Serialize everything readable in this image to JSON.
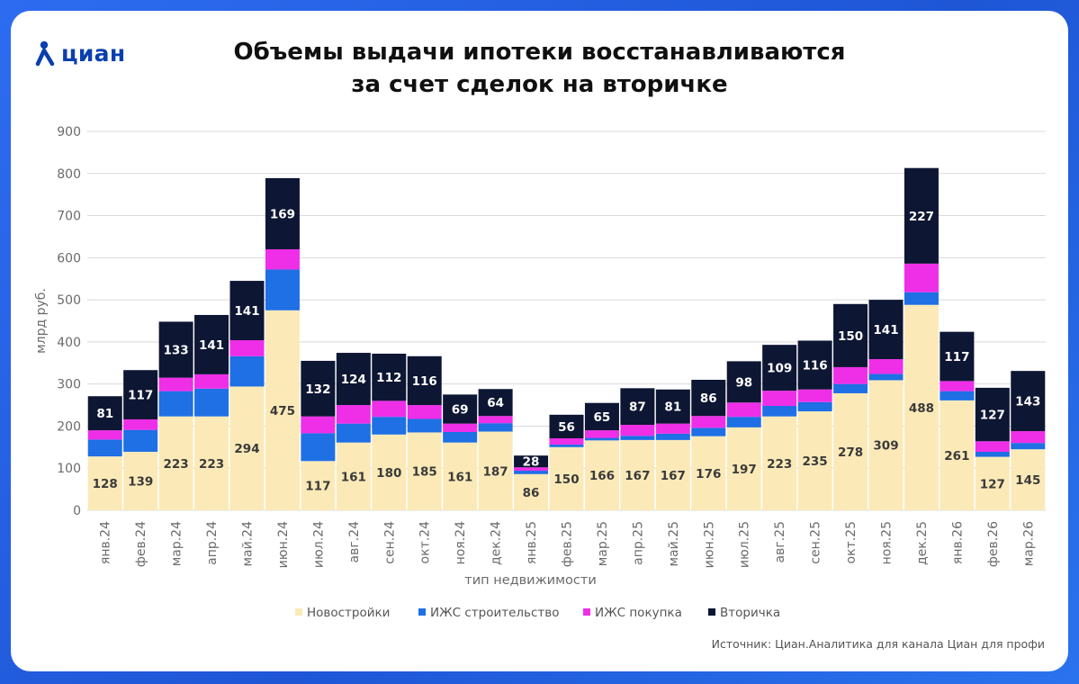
{
  "brand": {
    "logo_text": "циан",
    "icon": "cian-person-icon"
  },
  "title_lines": [
    "Объемы выдачи ипотеки восстанавливаются",
    "за счет сделок на вторичке"
  ],
  "source_text": "Источник: Циан.Аналитика для канала Циан для профи",
  "chart_data": {
    "type": "bar",
    "stacked": true,
    "title": "Объемы выдачи ипотеки восстанавливаются за счет сделок на вторичке",
    "xlabel": "тип недвижимости",
    "ylabel": "млрд руб.",
    "ylim": [
      0,
      900
    ],
    "yticks": [
      0,
      100,
      200,
      300,
      400,
      500,
      600,
      700,
      800,
      900
    ],
    "grid": true,
    "legend_position": "bottom",
    "categories": [
      "янв.24",
      "фев.24",
      "мар.24",
      "апр.24",
      "май.24",
      "июн.24",
      "июл.24",
      "авг.24",
      "сен.24",
      "окт.24",
      "ноя.24",
      "дек.24",
      "янв.25",
      "фев.25",
      "мар.25",
      "апр.25",
      "май.25",
      "июн.25",
      "июл.25",
      "авг.25",
      "сен.25",
      "окт.25",
      "ноя.25",
      "дек.25",
      "янв.26",
      "фев.26",
      "мар.26"
    ],
    "series": [
      {
        "name": "Новостройки",
        "color": "#fbeab8",
        "show_labels": true,
        "values": [
          128,
          139,
          223,
          223,
          294,
          475,
          117,
          161,
          180,
          185,
          161,
          187,
          86,
          150,
          166,
          167,
          167,
          176,
          197,
          223,
          235,
          278,
          309,
          488,
          261,
          127,
          145
        ]
      },
      {
        "name": "ИЖС строительство",
        "color": "#1f6fe5",
        "show_labels": false,
        "values": [
          40,
          52,
          60,
          66,
          72,
          97,
          66,
          45,
          42,
          32,
          25,
          20,
          8,
          6,
          6,
          10,
          15,
          20,
          25,
          25,
          22,
          22,
          15,
          30,
          22,
          12,
          15
        ]
      },
      {
        "name": "ИЖС покупка",
        "color": "#ef2ee8",
        "show_labels": false,
        "values": [
          22,
          25,
          32,
          34,
          38,
          48,
          40,
          44,
          38,
          33,
          20,
          17,
          8,
          15,
          18,
          26,
          24,
          28,
          34,
          36,
          30,
          40,
          35,
          68,
          24,
          25,
          28
        ]
      },
      {
        "name": "Вторичка",
        "color": "#0d1633",
        "show_labels": true,
        "values": [
          81,
          117,
          133,
          141,
          141,
          169,
          132,
          124,
          112,
          116,
          69,
          64,
          28,
          56,
          65,
          87,
          81,
          86,
          98,
          109,
          116,
          150,
          141,
          227,
          117,
          127,
          143
        ]
      }
    ]
  }
}
